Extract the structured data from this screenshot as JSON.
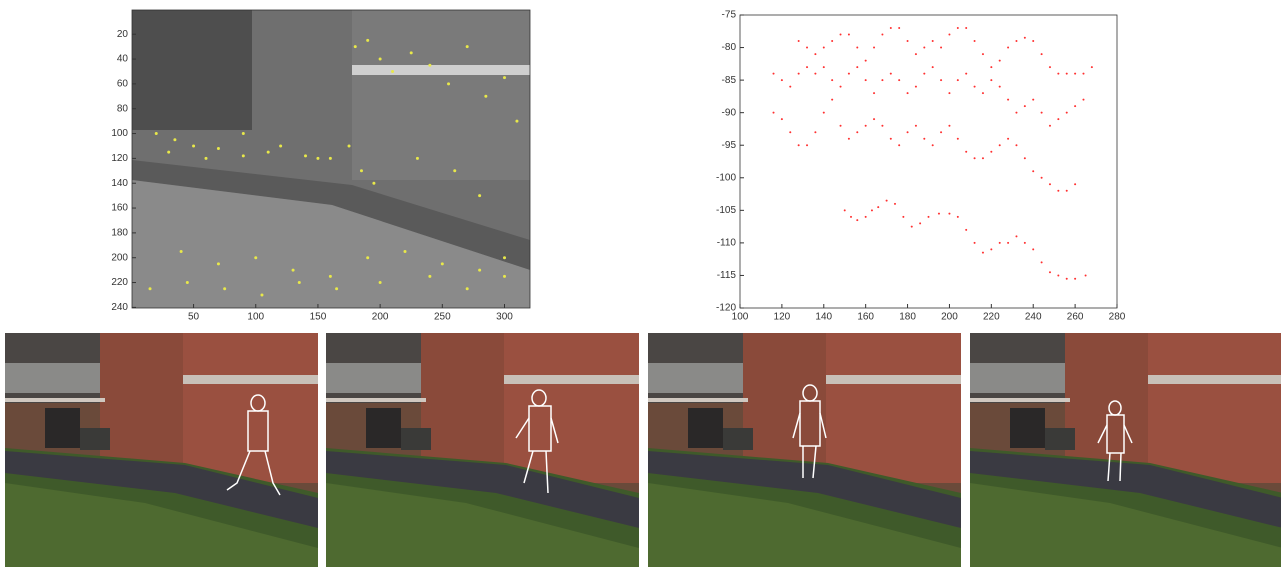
{
  "chart_data": [
    {
      "type": "image",
      "xlim": [
        0.5,
        320.5
      ],
      "ylim": [
        240.5,
        0.5
      ],
      "xticks": [
        50,
        100,
        150,
        200,
        250,
        300
      ],
      "yticks": [
        20,
        40,
        60,
        80,
        100,
        120,
        140,
        160,
        180,
        200,
        220,
        240
      ],
      "series": [
        {
          "color": "#e8e84a",
          "x": [
            20,
            35,
            50,
            70,
            90,
            110,
            140,
            160,
            175,
            180,
            190,
            200,
            210,
            225,
            240,
            255,
            270,
            285,
            300,
            310,
            185,
            195,
            230,
            260,
            280,
            30,
            60,
            90,
            120,
            150,
            40,
            70,
            100,
            130,
            160,
            190,
            220,
            250,
            280,
            300,
            15,
            45,
            75,
            105,
            135,
            165,
            200,
            240,
            270,
            300
          ],
          "y": [
            100,
            105,
            110,
            112,
            100,
            115,
            118,
            120,
            110,
            30,
            25,
            40,
            50,
            35,
            45,
            60,
            30,
            70,
            55,
            90,
            130,
            140,
            120,
            130,
            150,
            115,
            120,
            118,
            110,
            120,
            195,
            205,
            200,
            210,
            215,
            200,
            195,
            205,
            210,
            200,
            225,
            220,
            225,
            230,
            220,
            225,
            220,
            215,
            225,
            215
          ]
        }
      ]
    },
    {
      "type": "scatter",
      "xlim": [
        100,
        280
      ],
      "ylim": [
        -120,
        -75
      ],
      "xticks": [
        100,
        120,
        140,
        160,
        180,
        200,
        220,
        240,
        260,
        280
      ],
      "yticks": [
        -120,
        -115,
        -110,
        -105,
        -100,
        -95,
        -90,
        -85,
        -80,
        -75
      ],
      "series": [
        {
          "color": "#ff3030",
          "x": [
            150,
            153,
            156,
            160,
            163,
            166,
            170,
            174,
            178,
            182,
            186,
            190,
            195,
            200,
            204,
            208,
            212,
            216,
            220,
            224,
            228,
            232,
            236,
            240,
            244,
            248,
            252,
            256,
            260,
            265,
            128,
            132,
            136,
            140,
            144,
            148,
            152,
            156,
            160,
            164,
            168,
            172,
            176,
            180,
            184,
            188,
            192,
            196,
            200,
            204,
            208,
            212,
            216,
            220,
            224,
            228,
            232,
            236,
            240,
            244,
            248,
            252,
            256,
            260,
            264,
            268,
            116,
            120,
            124,
            128,
            132,
            136,
            140,
            144,
            148,
            152,
            156,
            160,
            164,
            168,
            172,
            176,
            180,
            184,
            188,
            192,
            196,
            200,
            204,
            208,
            212,
            216,
            220,
            224,
            228,
            232,
            236,
            240,
            244,
            248,
            252,
            256,
            260,
            264,
            116,
            120,
            124,
            128,
            132,
            136,
            140,
            144,
            148,
            152,
            156,
            160,
            164,
            168,
            172,
            176,
            180,
            184,
            188,
            192,
            196,
            200,
            204,
            208,
            212,
            216,
            220,
            224,
            228,
            232,
            236,
            240,
            244,
            248,
            252,
            256,
            260
          ],
          "y": [
            -105,
            -106,
            -106.5,
            -106,
            -105,
            -104.5,
            -103.5,
            -104,
            -106,
            -107.5,
            -107,
            -106,
            -105.5,
            -105.5,
            -106,
            -108,
            -110,
            -111.5,
            -111,
            -110,
            -110,
            -109,
            -110,
            -111,
            -113,
            -114.5,
            -115,
            -115.5,
            -115.5,
            -115,
            -79,
            -80,
            -81,
            -80,
            -79,
            -78,
            -78,
            -80,
            -82,
            -80,
            -78,
            -77,
            -77,
            -79,
            -81,
            -80,
            -79,
            -80,
            -78,
            -77,
            -77,
            -79,
            -81,
            -83,
            -82,
            -80,
            -79,
            -78.5,
            -79,
            -81,
            -83,
            -84,
            -84,
            -84,
            -84,
            -83,
            -84,
            -85,
            -86,
            -84,
            -83,
            -84,
            -83,
            -85,
            -86,
            -84,
            -83,
            -85,
            -87,
            -85,
            -84,
            -85,
            -87,
            -86,
            -84,
            -83,
            -85,
            -87,
            -85,
            -84,
            -86,
            -87,
            -85,
            -86,
            -88,
            -90,
            -89,
            -88,
            -90,
            -92,
            -91,
            -90,
            -89,
            -88,
            -90,
            -91,
            -93,
            -95,
            -95,
            -93,
            -90,
            -88,
            -92,
            -94,
            -93,
            -92,
            -91,
            -92,
            -94,
            -95,
            -93,
            -92,
            -94,
            -95,
            -93,
            -92,
            -94,
            -96,
            -97,
            -97,
            -96,
            -95,
            -94,
            -95,
            -97,
            -99,
            -100,
            -101,
            -102,
            -102,
            -101
          ]
        }
      ]
    }
  ]
}
